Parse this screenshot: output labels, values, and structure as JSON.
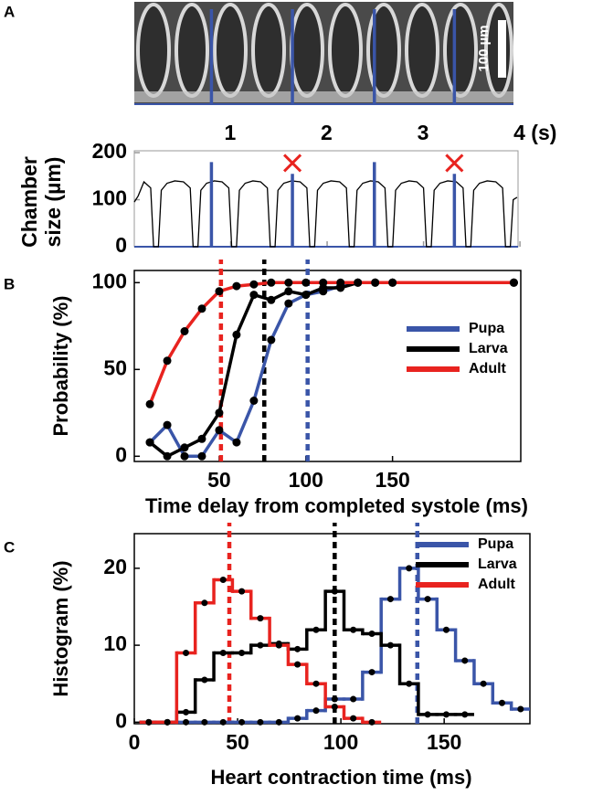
{
  "image": {
    "panel": "A",
    "scale_bar": "100 µm"
  },
  "chart_data": [
    {
      "type": "line",
      "ylabel": "Chamber size (µm)",
      "x": [
        0,
        0.04,
        0.08,
        0.1,
        0.17,
        0.2,
        0.25,
        0.28,
        0.34,
        0.42,
        0.51,
        0.58,
        0.61,
        0.66,
        0.69,
        0.75,
        0.83,
        0.91,
        0.98,
        1.01,
        1.06,
        1.09,
        1.15,
        1.23,
        1.31,
        1.38,
        1.41,
        1.46,
        1.49,
        1.55,
        1.63,
        1.72,
        1.79,
        1.82,
        1.87,
        1.9,
        1.96,
        2.04,
        2.13,
        2.2,
        2.23,
        2.28,
        2.31,
        2.37,
        2.45,
        2.53,
        2.6,
        2.63,
        2.68,
        2.71,
        2.77,
        2.85,
        2.93,
        3.0,
        3.03,
        3.08,
        3.11,
        3.17,
        3.25,
        3.34,
        3.41,
        3.44,
        3.49,
        3.52,
        3.58,
        3.66,
        3.75,
        3.82,
        3.85,
        3.9,
        3.93,
        3.97
      ],
      "series": [
        {
          "color": "#000000",
          "values": [
            95,
            108,
            128,
            138,
            125,
            0,
            0,
            120,
            135,
            140,
            138,
            125,
            0,
            0,
            120,
            135,
            140,
            138,
            125,
            0,
            0,
            120,
            135,
            140,
            138,
            125,
            0,
            0,
            120,
            135,
            140,
            138,
            125,
            0,
            0,
            120,
            135,
            140,
            138,
            125,
            0,
            0,
            120,
            135,
            140,
            138,
            125,
            0,
            0,
            120,
            135,
            140,
            138,
            125,
            0,
            0,
            120,
            135,
            140,
            138,
            125,
            0,
            0,
            120,
            135,
            140,
            138,
            125,
            0,
            0,
            100,
            105
          ]
        }
      ],
      "xlim": [
        0,
        3.98
      ],
      "ylim": [
        0,
        204
      ],
      "xticks": [
        1,
        2,
        3,
        {
          "value": 4,
          "label": "4 (s)"
        }
      ],
      "yticks": [
        0,
        100,
        200
      ],
      "vlines": {
        "color": "#3a55a8",
        "x": [
          0.8,
          1.64,
          2.49,
          3.32
        ],
        "values": [
          180,
          155,
          180,
          155
        ]
      },
      "crosses": {
        "color": "#e8231f",
        "x": [
          1.64,
          3.32
        ],
        "values": [
          178,
          178
        ]
      }
    },
    {
      "type": "line",
      "panel": "B",
      "xlabel": "Time delay from completed systole (ms)",
      "ylabel": "Probability (%)",
      "x": [
        10,
        20,
        30,
        40,
        50,
        60,
        70,
        80,
        90,
        100,
        110,
        120,
        130,
        140,
        150,
        220
      ],
      "series": [
        {
          "name": "Pupa",
          "color": "#3a55a8",
          "values": [
            8,
            18,
            0,
            0,
            15,
            8,
            32,
            67,
            88,
            93,
            95,
            98,
            100,
            100,
            100,
            100
          ]
        },
        {
          "name": "Larva",
          "color": "#000000",
          "values": [
            8,
            0,
            5,
            10,
            25,
            70,
            93,
            90,
            95,
            93,
            97,
            97,
            100,
            100,
            100,
            100
          ]
        },
        {
          "name": "Adult",
          "color": "#e8231f",
          "values": [
            30,
            55,
            72,
            85,
            95,
            98,
            99,
            100,
            100,
            100,
            100,
            100,
            100,
            100,
            100,
            100
          ]
        }
      ],
      "markers": true,
      "means": [
        {
          "x": 101,
          "color": "#3a55a8"
        },
        {
          "x": 76,
          "color": "#000000"
        },
        {
          "x": 51,
          "color": "#e8231f"
        }
      ],
      "xlim": [
        1,
        224
      ],
      "ylim": [
        -3,
        107
      ],
      "xticks": [
        50,
        100,
        150
      ],
      "yticks": [
        0,
        50,
        100
      ],
      "legend": "right"
    },
    {
      "type": "histogram",
      "panel": "C",
      "xlabel": "Heart contraction time (ms)",
      "ylabel": "Histogram (%)",
      "bins": [
        2.5,
        11.5,
        20.5,
        29.5,
        38.5,
        47.5,
        56.5,
        65.5,
        74.5,
        83.5,
        92.5,
        101.5,
        110.5,
        119.5,
        128.5,
        137.5,
        146.5,
        155.5,
        164.5,
        173.5,
        182.5,
        191.5
      ],
      "series": [
        {
          "name": "Pupa",
          "color": "#3a55a8",
          "values": [
            0,
            0,
            0,
            0,
            0,
            0,
            0,
            0,
            0.5,
            1.5,
            3,
            3,
            6.5,
            16,
            20,
            16,
            12,
            8,
            5,
            2.5,
            1.7
          ]
        },
        {
          "name": "Larva",
          "color": "#000000",
          "values": [
            0,
            0,
            1.3,
            5.5,
            9,
            9,
            10,
            10.2,
            9.5,
            12,
            17,
            12,
            11.5,
            10,
            5,
            1,
            1,
            1,
            null,
            null,
            null
          ]
        },
        {
          "name": "Adult",
          "color": "#e8231f",
          "values": [
            0,
            0,
            9,
            15.5,
            18.5,
            17,
            13.5,
            10,
            7.5,
            5,
            2,
            0.5,
            0,
            null,
            null,
            null,
            null,
            null,
            null,
            null,
            null
          ]
        }
      ],
      "means": [
        {
          "x": 137,
          "color": "#3a55a8"
        },
        {
          "x": 97,
          "color": "#000000"
        },
        {
          "x": 46,
          "color": "#e8231f"
        }
      ],
      "xlim": [
        0,
        191.5
      ],
      "ylim": [
        -0.2,
        24.5
      ],
      "xticks": [
        0,
        50,
        100,
        150
      ],
      "yticks": [
        0,
        10,
        20
      ],
      "legend": "upper right"
    }
  ]
}
